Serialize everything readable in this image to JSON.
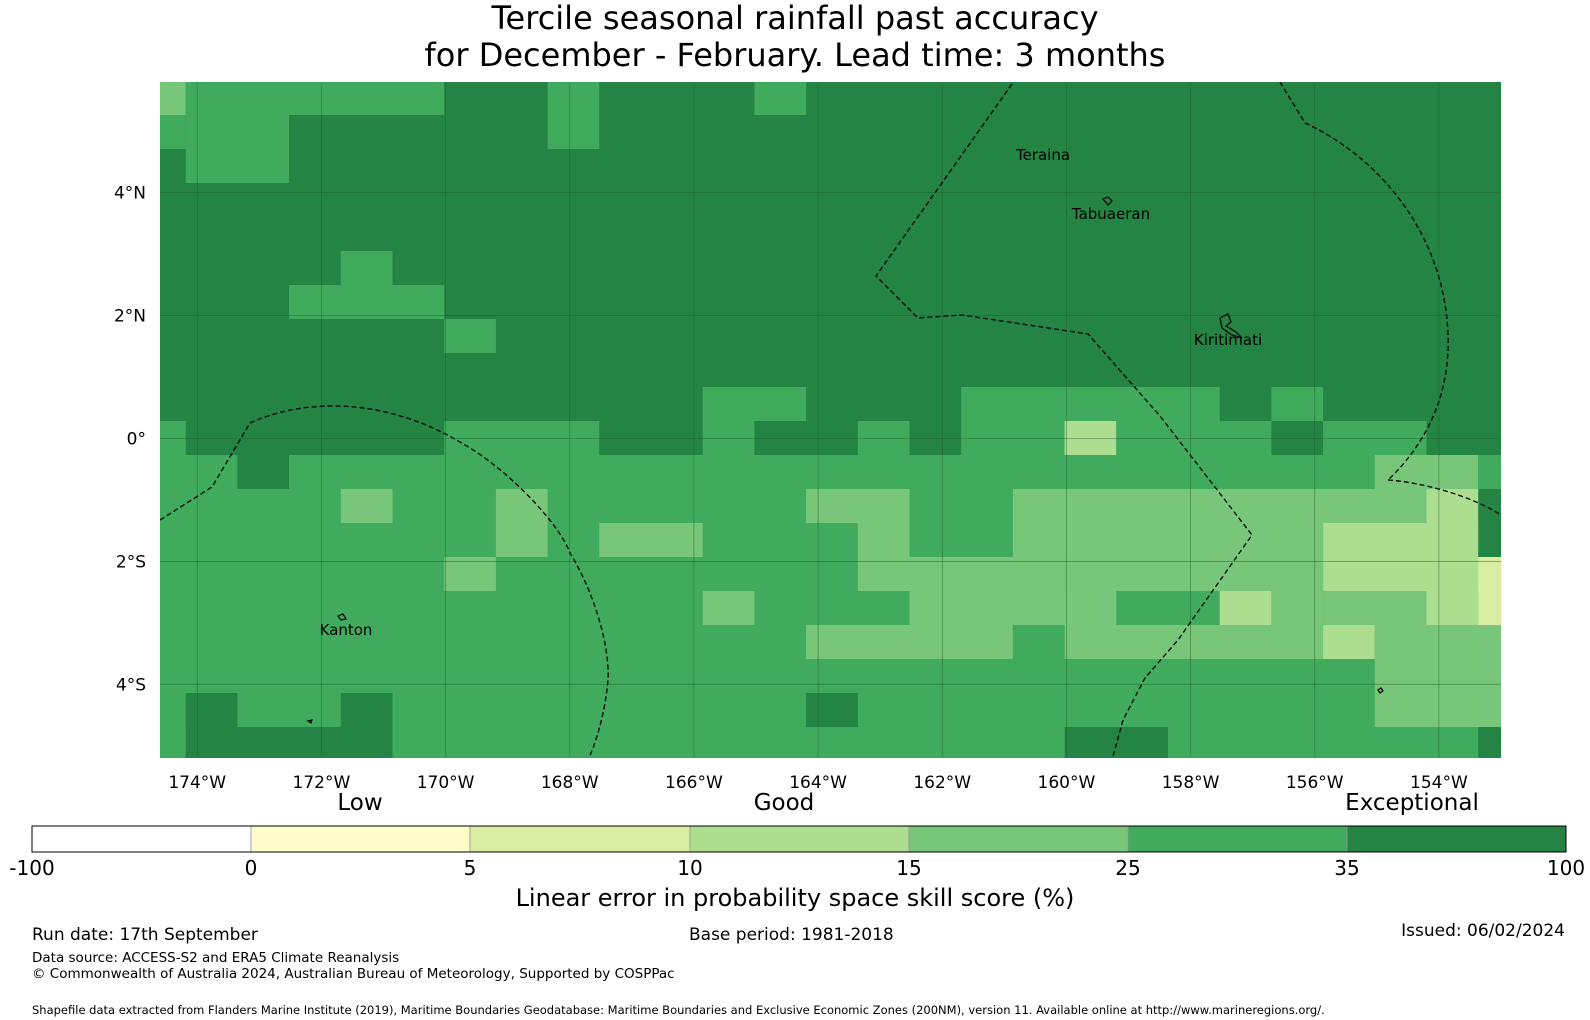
{
  "title": {
    "line1": "Tercile seasonal rainfall past accuracy",
    "line2": "for December - February. Lead time: 3 months"
  },
  "map": {
    "lon_range": [
      -174.6,
      -153.0
    ],
    "lat_range": [
      -5.2,
      5.8
    ],
    "x_ticks": [
      "174°W",
      "172°W",
      "170°W",
      "168°W",
      "166°W",
      "164°W",
      "162°W",
      "160°W",
      "158°W",
      "156°W",
      "154°W"
    ],
    "y_ticks": [
      "4°N",
      "2°N",
      "0°",
      "2°S",
      "4°S"
    ],
    "places": [
      {
        "name": "Teraina"
      },
      {
        "name": "Tabuaeran"
      },
      {
        "name": "Kiritimati"
      },
      {
        "name": "Kanton"
      }
    ],
    "grid_cell_deg": 0.833,
    "background_class": "35-100",
    "cells_note": "class index per cell, rows listed from north to south"
  },
  "legend": {
    "category_labels": [
      "Low",
      "Good",
      "Exceptional"
    ],
    "tick_labels": [
      "-100",
      "0",
      "5",
      "10",
      "15",
      "25",
      "35",
      "100"
    ],
    "colors": [
      "#ffffff",
      "#fdfdca",
      "#d9eea2",
      "#addd8e",
      "#78c679",
      "#41ab5d",
      "#238443"
    ],
    "title": "Linear error in probability space skill score (%)"
  },
  "footer": {
    "run_date": "Run date: 17th September",
    "base_period": "Base period: 1981-2018",
    "issued": "Issued: 06/02/2024",
    "data_source": "Data source: ACCESS-S2 and ERA5 Climate Reanalysis",
    "copyright": "© Commonwealth of Australia 2024, Australian Bureau of Meteorology, Supported by COSPPac",
    "shapefile": "Shapefile data extracted from Flanders Marine Institute (2019), Maritime Boundaries Geodatabase: Maritime Boundaries and Exclusive Economic Zones (200NM), version 11. Available online at http://www.marineregions.org/."
  }
}
